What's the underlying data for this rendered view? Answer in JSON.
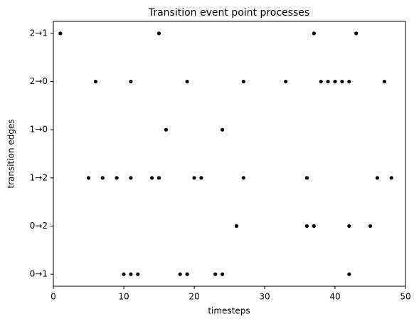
{
  "chart_data": {
    "type": "scatter",
    "title": "Transition event point processes",
    "x_label": "timesteps",
    "y_label": "transition edges",
    "categories": [
      "0→1",
      "0→2",
      "1→2",
      "1→0",
      "2→0",
      "2→1"
    ],
    "x": [
      1,
      15,
      37,
      43,
      6,
      11,
      19,
      27,
      33,
      38,
      39,
      40,
      41,
      42,
      47,
      16,
      24,
      5,
      7,
      9,
      11,
      14,
      15,
      20,
      21,
      27,
      36,
      46,
      48,
      26,
      36,
      37,
      42,
      45,
      10,
      11,
      12,
      18,
      19,
      23,
      24,
      42
    ],
    "y": [
      "2→1",
      "2→1",
      "2→1",
      "2→1",
      "2→0",
      "2→0",
      "2→0",
      "2→0",
      "2→0",
      "2→0",
      "2→0",
      "2→0",
      "2→0",
      "2→0",
      "2→0",
      "1→0",
      "1→0",
      "1→2",
      "1→2",
      "1→2",
      "1→2",
      "1→2",
      "1→2",
      "1→2",
      "1→2",
      "1→2",
      "1→2",
      "1→2",
      "1→2",
      "0→2",
      "0→2",
      "0→2",
      "0→2",
      "0→2",
      "0→1",
      "0→1",
      "0→1",
      "0→1",
      "0→1",
      "0→1",
      "0→1",
      "0→1"
    ],
    "color": "#000000",
    "xlim": [
      0,
      50
    ],
    "xticks": [
      0,
      10,
      20,
      30,
      40,
      50
    ]
  }
}
